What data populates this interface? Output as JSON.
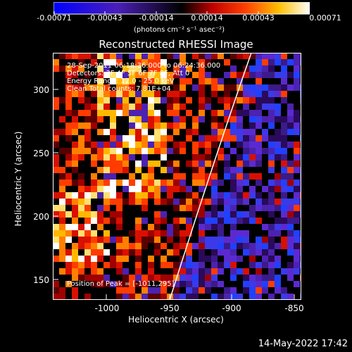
{
  "colorbar": {
    "ticks": [
      "-0.00071",
      "-0.00043",
      "-0.00014",
      "0.00014",
      "0.00043",
      "0.00071"
    ],
    "units": "(photons cm⁻² s⁻¹ asec⁻²)"
  },
  "title": "Reconstructed RHESSI Image",
  "annotations": [
    "28-Sep-2011 06:18:36.000 to 06:24:36.000",
    "Detectors: 3F 4F 5F 6F 7F 8F, Att 0",
    "Energy Range: 12.0 - 25.0 keV",
    "Clean    Total counts: 7.81E+04"
  ],
  "peak_label": "Position of Peak = [-1011,295]",
  "axes": {
    "xlabel": "Heliocentric X (arcsec)",
    "ylabel": "Heliocentric Y (arcsec)",
    "xticks": [
      "-1000",
      "-950",
      "-900",
      "-850"
    ],
    "yticks": [
      "300",
      "250",
      "200",
      "150"
    ]
  },
  "timestamp": "14-May-2022 17:42"
}
